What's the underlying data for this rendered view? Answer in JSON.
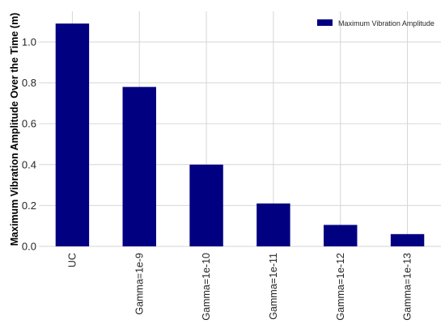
{
  "chart_data": {
    "type": "bar",
    "categories": [
      "UC",
      "Gamma=1e-9",
      "Gamma=1e-10",
      "Gamma=1e-11",
      "Gamma=1e-12",
      "Gamma=1e-13"
    ],
    "series": [
      {
        "name": "Maximum Vibration Amplitude",
        "values": [
          1.09,
          0.78,
          0.4,
          0.21,
          0.105,
          0.06
        ]
      }
    ],
    "ylabel": "Maximum Vibration Amplitude Over the Time (m)",
    "xlabel": "",
    "ylim": [
      0,
      1.15
    ],
    "yticks": [
      0.0,
      0.2,
      0.4,
      0.6,
      0.8,
      1.0
    ],
    "ytick_labels": [
      "0.0",
      "0.2",
      "0.4",
      "0.6",
      "0.8",
      "1.0"
    ],
    "grid": true,
    "legend_position": "top-right",
    "bar_color": "#000080"
  }
}
